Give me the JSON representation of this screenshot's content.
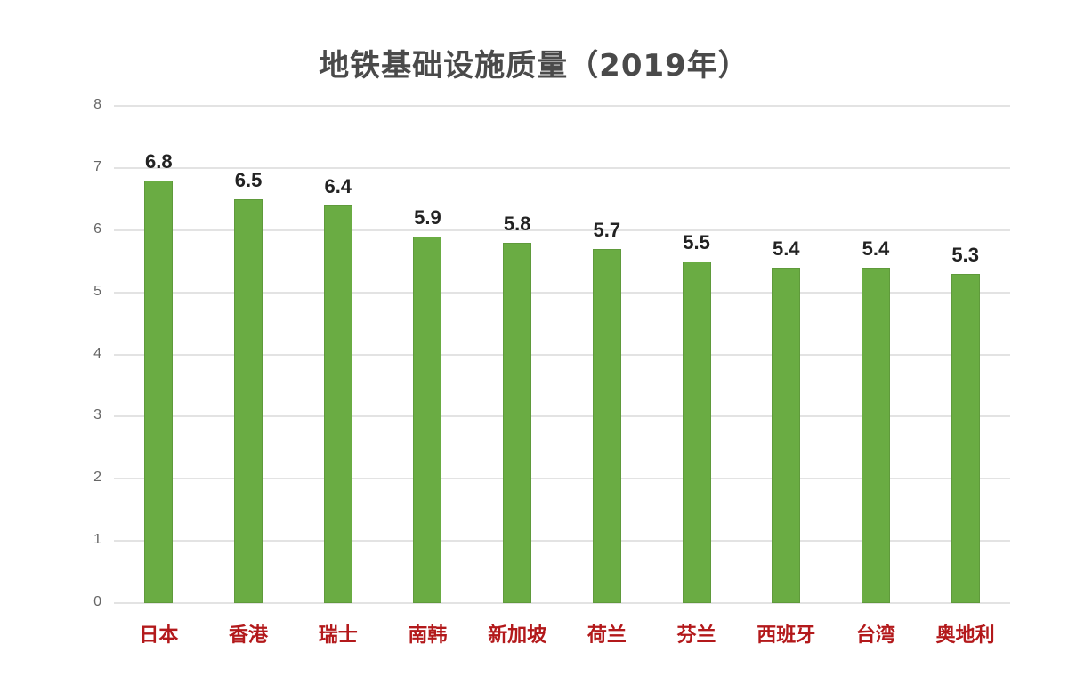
{
  "chart_data": {
    "type": "bar",
    "title": "地铁基础设施质量（2019年）",
    "xlabel": "",
    "ylabel": "",
    "ylim": [
      0,
      8
    ],
    "yticks": [
      0,
      1,
      2,
      3,
      4,
      5,
      6,
      7,
      8
    ],
    "grid": true,
    "legend": null,
    "categories": [
      "日本",
      "香港",
      "瑞士",
      "南韩",
      "新加坡",
      "荷兰",
      "芬兰",
      "西班牙",
      "台湾",
      "奥地利"
    ],
    "values": [
      6.8,
      6.5,
      6.4,
      5.9,
      5.8,
      5.7,
      5.5,
      5.4,
      5.4,
      5.3
    ],
    "value_labels": [
      "6.8",
      "6.5",
      "6.4",
      "5.9",
      "5.8",
      "5.7",
      "5.5",
      "5.4",
      "5.4",
      "5.3"
    ],
    "colors": {
      "bar": "#6aac43",
      "category_label": "#b3191b",
      "title": "#4a4a4a",
      "value_label": "#222222",
      "gridline": "#e3e3e3"
    }
  }
}
